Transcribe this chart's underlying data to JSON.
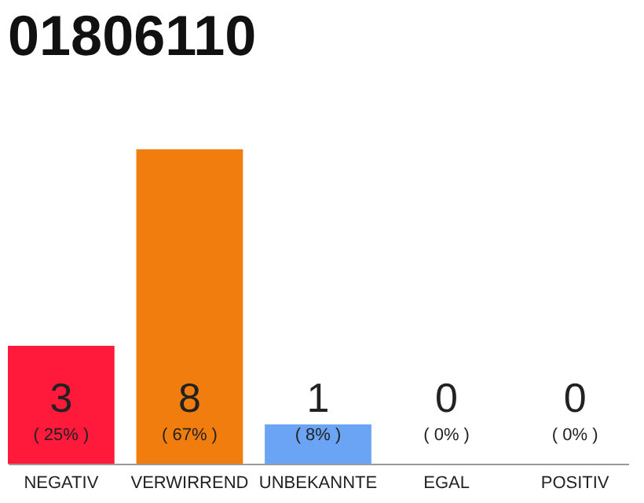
{
  "chart_data": {
    "type": "bar",
    "title": "01806110",
    "categories": [
      "NEGATIV",
      "VERWIRREND",
      "UNBEKANNTE",
      "EGAL",
      "POSITIV"
    ],
    "values": [
      3,
      8,
      1,
      0,
      0
    ],
    "colors": [
      "#ff1a3c",
      "#f07d0e",
      "#6ba3f5",
      "#cccccc",
      "#cccccc"
    ],
    "data_labels": true,
    "annotations": [
      "( 25% )",
      "( 67% )",
      "( 8% )",
      "( 0% )",
      "( 0% )"
    ]
  }
}
